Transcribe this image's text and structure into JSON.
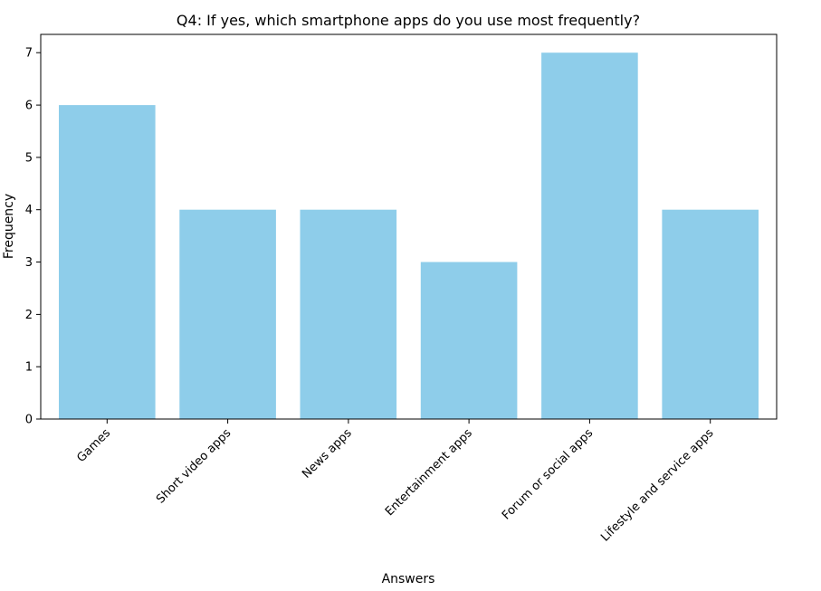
{
  "chart_data": {
    "type": "bar",
    "title": "Q4: If yes, which smartphone apps do you use most frequently?",
    "xlabel": "Answers",
    "ylabel": "Frequency",
    "categories": [
      "Games",
      "Short video apps",
      "News apps",
      "Entertainment apps",
      "Forum or social apps",
      "Lifestyle and service apps"
    ],
    "values": [
      6,
      4,
      4,
      3,
      7,
      4
    ],
    "ylim": [
      0,
      7.35
    ],
    "yticks": [
      0,
      1,
      2,
      3,
      4,
      5,
      6,
      7
    ],
    "bar_color": "#8ecdea",
    "grid": false,
    "legend": "none"
  }
}
